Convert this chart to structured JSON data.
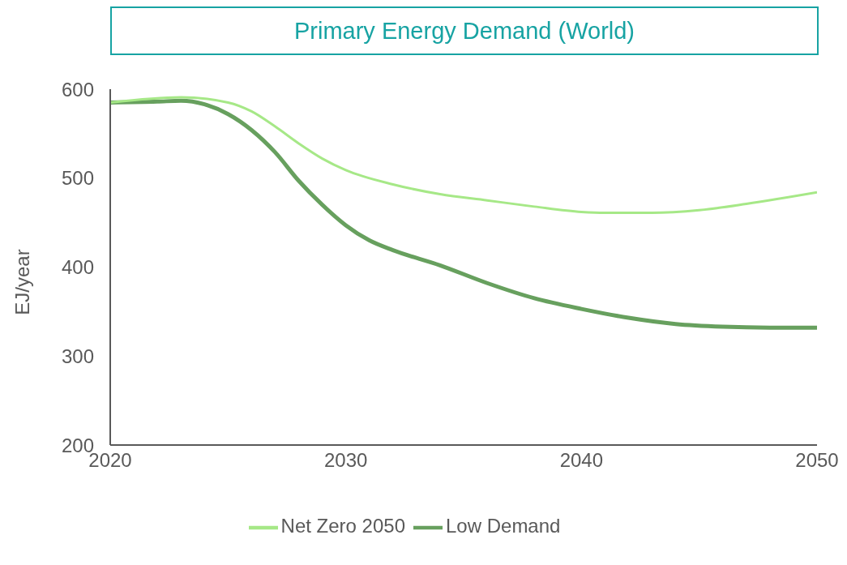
{
  "chart_data": {
    "type": "line",
    "title": "Primary Energy Demand (World)",
    "ylabel": "EJ/year",
    "xlim": [
      2020,
      2050
    ],
    "xticks": [
      2020,
      2030,
      2040,
      2050
    ],
    "ylim": [
      200,
      600
    ],
    "yticks": [
      200,
      300,
      400,
      500,
      600
    ],
    "grid": false,
    "legend": "bottom",
    "marker": "none",
    "line_style": "solid",
    "series": [
      {
        "name": "Net Zero 2050",
        "color": "#a6e887",
        "x": [
          2020,
          2023,
          2025,
          2026,
          2027,
          2028,
          2029,
          2030,
          2032,
          2034,
          2036,
          2038,
          2040,
          2041,
          2043,
          2045,
          2047,
          2050
        ],
        "values": [
          585,
          591,
          585,
          575,
          558,
          539,
          522,
          509,
          493,
          482,
          475,
          468,
          462,
          461,
          461,
          464,
          471,
          484
        ]
      },
      {
        "name": "Low Demand",
        "color": "#67a05e",
        "x": [
          2020,
          2022,
          2023,
          2024,
          2025,
          2026,
          2027,
          2028,
          2029,
          2030,
          2031,
          2032,
          2034,
          2036,
          2038,
          2040,
          2042,
          2044,
          2046,
          2048,
          2050
        ],
        "values": [
          585,
          586,
          587,
          583,
          572,
          554,
          529,
          497,
          470,
          447,
          430,
          419,
          402,
          382,
          365,
          353,
          343,
          336,
          333,
          332,
          332
        ]
      }
    ]
  }
}
